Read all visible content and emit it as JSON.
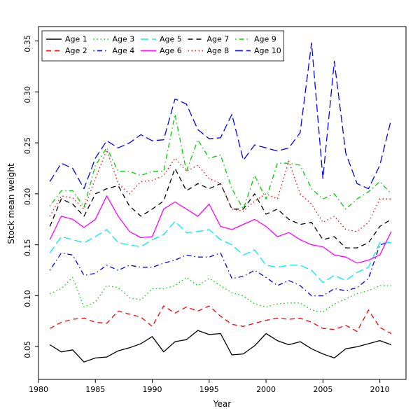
{
  "chart_data": {
    "type": "line",
    "title": "",
    "xlabel": "Year",
    "ylabel": "Stock mean weight",
    "grid": false,
    "legend_position": "top-inside",
    "legend_columns": 5,
    "xlim": [
      1980,
      2012.3
    ],
    "ylim": [
      0.018,
      0.364
    ],
    "xticks": [
      1980,
      1985,
      1990,
      1995,
      2000,
      2005,
      2010
    ],
    "yticks": [
      0.05,
      0.1,
      0.15,
      0.2,
      0.25,
      0.3,
      0.35
    ],
    "x": [
      1981,
      1982,
      1983,
      1984,
      1985,
      1986,
      1987,
      1988,
      1989,
      1990,
      1991,
      1992,
      1993,
      1994,
      1995,
      1996,
      1997,
      1998,
      1999,
      2000,
      2001,
      2002,
      2003,
      2004,
      2005,
      2006,
      2007,
      2008,
      2009,
      2010,
      2011
    ],
    "series": [
      {
        "name": "Age 1",
        "color": "#000000",
        "linetype": "solid",
        "values": [
          0.052,
          0.045,
          0.047,
          0.035,
          0.039,
          0.04,
          0.046,
          0.049,
          0.053,
          0.06,
          0.045,
          0.055,
          0.057,
          0.066,
          0.062,
          0.063,
          0.042,
          0.043,
          0.051,
          0.063,
          0.056,
          0.052,
          0.055,
          0.048,
          0.043,
          0.039,
          0.048,
          0.05,
          0.053,
          0.056,
          0.052
        ]
      },
      {
        "name": "Age 2",
        "color": "#ff0000",
        "linetype": "dashed",
        "values": [
          0.068,
          0.074,
          0.077,
          0.078,
          0.074,
          0.073,
          0.085,
          0.082,
          0.079,
          0.07,
          0.09,
          0.083,
          0.089,
          0.085,
          0.09,
          0.08,
          0.072,
          0.07,
          0.073,
          0.076,
          0.078,
          0.077,
          0.078,
          0.074,
          0.068,
          0.067,
          0.071,
          0.065,
          0.086,
          0.069,
          0.063
        ]
      },
      {
        "name": "Age 3",
        "color": "#00cd00",
        "linetype": "dotted",
        "values": [
          0.102,
          0.107,
          0.118,
          0.089,
          0.094,
          0.11,
          0.108,
          0.098,
          0.096,
          0.107,
          0.107,
          0.11,
          0.118,
          0.11,
          0.117,
          0.11,
          0.103,
          0.1,
          0.092,
          0.089,
          0.092,
          0.093,
          0.093,
          0.086,
          0.084,
          0.092,
          0.097,
          0.102,
          0.105,
          0.11,
          0.11
        ]
      },
      {
        "name": "Age 4",
        "color": "#0000ff",
        "linetype": "dotdash",
        "values": [
          0.125,
          0.142,
          0.14,
          0.12,
          0.122,
          0.13,
          0.125,
          0.13,
          0.128,
          0.128,
          0.132,
          0.135,
          0.14,
          0.138,
          0.138,
          0.142,
          0.117,
          0.119,
          0.125,
          0.118,
          0.11,
          0.115,
          0.11,
          0.1,
          0.1,
          0.107,
          0.105,
          0.108,
          0.117,
          0.15,
          0.153
        ]
      },
      {
        "name": "Age 5",
        "color": "#00eeee",
        "linetype": "longdash",
        "values": [
          0.142,
          0.158,
          0.155,
          0.152,
          0.158,
          0.165,
          0.152,
          0.15,
          0.148,
          0.155,
          0.16,
          0.173,
          0.162,
          0.163,
          0.165,
          0.155,
          0.15,
          0.14,
          0.145,
          0.13,
          0.128,
          0.13,
          0.13,
          0.125,
          0.113,
          0.12,
          0.115,
          0.123,
          0.128,
          0.152,
          0.152
        ]
      },
      {
        "name": "Age 6",
        "color": "#ff00ff",
        "linetype": "solid",
        "values": [
          0.155,
          0.178,
          0.175,
          0.167,
          0.175,
          0.198,
          0.178,
          0.163,
          0.157,
          0.158,
          0.185,
          0.192,
          0.185,
          0.178,
          0.19,
          0.168,
          0.165,
          0.17,
          0.175,
          0.168,
          0.158,
          0.162,
          0.155,
          0.15,
          0.148,
          0.14,
          0.138,
          0.132,
          0.135,
          0.14,
          0.163
        ]
      },
      {
        "name": "Age 7",
        "color": "#000000",
        "linetype": "dashed",
        "values": [
          0.168,
          0.195,
          0.19,
          0.178,
          0.2,
          0.205,
          0.208,
          0.188,
          0.178,
          0.185,
          0.193,
          0.225,
          0.203,
          0.21,
          0.205,
          0.21,
          0.185,
          0.185,
          0.2,
          0.18,
          0.185,
          0.175,
          0.17,
          0.172,
          0.155,
          0.158,
          0.147,
          0.147,
          0.152,
          0.168,
          0.175
        ]
      },
      {
        "name": "Age 8",
        "color": "#ff0000",
        "linetype": "dotted",
        "values": [
          0.178,
          0.198,
          0.196,
          0.185,
          0.215,
          0.243,
          0.21,
          0.2,
          0.212,
          0.213,
          0.218,
          0.235,
          0.222,
          0.228,
          0.215,
          0.21,
          0.185,
          0.183,
          0.193,
          0.2,
          0.195,
          0.232,
          0.2,
          0.19,
          0.172,
          0.178,
          0.165,
          0.163,
          0.172,
          0.195,
          0.195
        ]
      },
      {
        "name": "Age 9",
        "color": "#00cd00",
        "linetype": "dotdash",
        "values": [
          0.188,
          0.203,
          0.203,
          0.187,
          0.228,
          0.245,
          0.222,
          0.222,
          0.218,
          0.222,
          0.222,
          0.278,
          0.222,
          0.253,
          0.235,
          0.238,
          0.205,
          0.185,
          0.218,
          0.195,
          0.23,
          0.23,
          0.228,
          0.205,
          0.195,
          0.2,
          0.185,
          0.195,
          0.202,
          0.212,
          0.2
        ]
      },
      {
        "name": "Age 10",
        "color": "#0000ff",
        "linetype": "longdash",
        "values": [
          0.212,
          0.23,
          0.225,
          0.205,
          0.235,
          0.252,
          0.245,
          0.25,
          0.258,
          0.252,
          0.253,
          0.293,
          0.288,
          0.263,
          0.254,
          0.255,
          0.278,
          0.233,
          0.248,
          0.245,
          0.242,
          0.245,
          0.26,
          0.348,
          0.215,
          0.33,
          0.24,
          0.21,
          0.205,
          0.228,
          0.273
        ]
      }
    ]
  }
}
